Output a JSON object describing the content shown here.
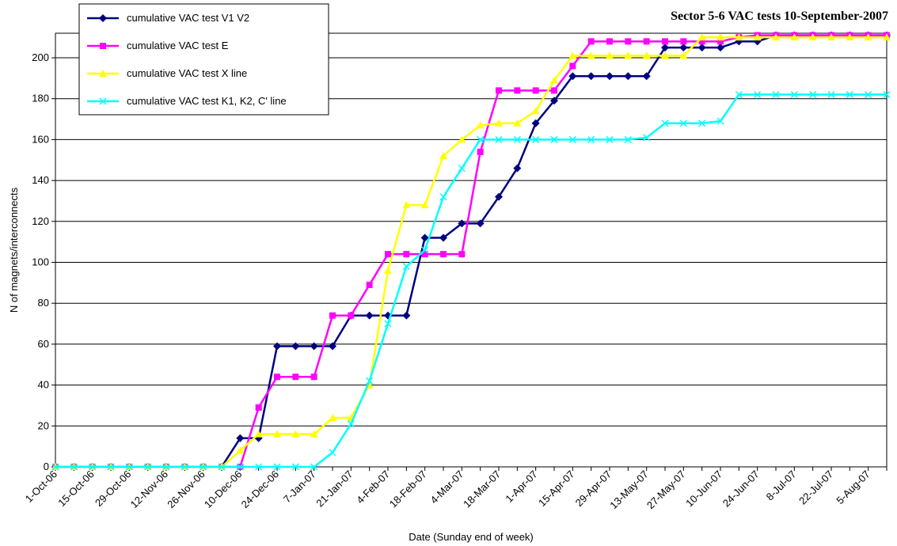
{
  "chart_data": {
    "type": "line",
    "title": "Sector 5-6 VAC tests 10-September-2007",
    "x_label": "Date (Sunday end of week)",
    "y_label": "N of magnets/interconnects",
    "categories": [
      "1-Oct-06",
      null,
      "15-Oct-06",
      null,
      "29-Oct-06",
      null,
      "12-Nov-06",
      null,
      "26-Nov-06",
      null,
      "10-Dec-06",
      null,
      "24-Dec-06",
      null,
      "7-Jan-07",
      null,
      "21-Jan-07",
      null,
      "4-Feb-07",
      null,
      "18-Feb-07",
      null,
      "4-Mar-07",
      null,
      "18-Mar-07",
      null,
      "1-Apr-07",
      null,
      "15-Apr-07",
      null,
      "29-Apr-07",
      null,
      "13-May-07",
      null,
      "27-May-07",
      null,
      "10-Jun-07",
      null,
      "24-Jun-07",
      null,
      "8-Jul-07",
      null,
      "22-Jul-07",
      null,
      "5-Aug-07",
      null
    ],
    "series": [
      {
        "name": "cumulative VAC test V1 V2",
        "color": "#000080",
        "marker": "diamond",
        "values": [
          0,
          0,
          0,
          0,
          0,
          0,
          0,
          0,
          0,
          0,
          14,
          14,
          59,
          59,
          59,
          59,
          74,
          74,
          74,
          74,
          112,
          112,
          119,
          119,
          132,
          146,
          168,
          179,
          191,
          191,
          191,
          191,
          191,
          205,
          205,
          205,
          205,
          208,
          208,
          211,
          211,
          211,
          211,
          211,
          211,
          211
        ]
      },
      {
        "name": "cumulative VAC test E",
        "color": "#ff00ff",
        "marker": "square",
        "values": [
          0,
          0,
          0,
          0,
          0,
          0,
          0,
          0,
          0,
          0,
          0,
          29,
          44,
          44,
          44,
          74,
          74,
          89,
          104,
          104,
          104,
          104,
          104,
          154,
          184,
          184,
          184,
          184,
          196,
          208,
          208,
          208,
          208,
          208,
          208,
          208,
          208,
          210,
          211,
          211,
          211,
          211,
          211,
          211,
          211,
          211
        ]
      },
      {
        "name": "cumulative VAC test X line",
        "color": "#ffff00",
        "marker": "triangle",
        "values": [
          0,
          0,
          0,
          0,
          0,
          0,
          0,
          0,
          0,
          0,
          8,
          16,
          16,
          16,
          16,
          24,
          24,
          40,
          96,
          128,
          128,
          152,
          160,
          167,
          168,
          168,
          174,
          189,
          201,
          201,
          201,
          201,
          201,
          201,
          201,
          210,
          210,
          210,
          210,
          210,
          210,
          210,
          210,
          210,
          210,
          210
        ]
      },
      {
        "name": "cumulative VAC test K1, K2, C' line",
        "color": "#00ffff",
        "marker": "x",
        "values": [
          0,
          0,
          0,
          0,
          0,
          0,
          0,
          0,
          0,
          0,
          0,
          0,
          0,
          0,
          0,
          7,
          21,
          42,
          70,
          98,
          106,
          132,
          146,
          160,
          160,
          160,
          160,
          160,
          160,
          160,
          160,
          160,
          161,
          168,
          168,
          168,
          169,
          182,
          182,
          182,
          182,
          182,
          182,
          182,
          182,
          182
        ]
      }
    ],
    "ylim": [
      0,
      212
    ],
    "yticks": [
      0,
      20,
      40,
      60,
      80,
      100,
      120,
      140,
      160,
      180,
      200
    ],
    "grid": true,
    "legend": "top-left"
  }
}
